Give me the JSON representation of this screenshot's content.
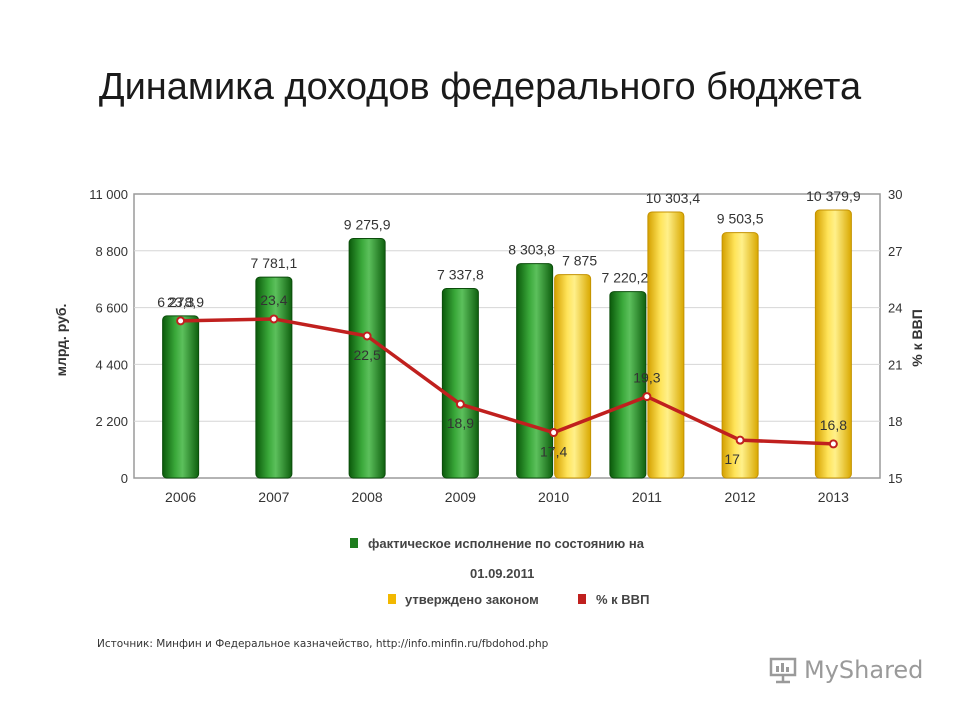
{
  "page_title": "Динамика доходов федерального бюджета",
  "source": "Источник: Минфин и Федеральное казначейство, http://info.minfin.ru/fbdohod.php",
  "logo": {
    "text": "MyShared",
    "icon": "presentation-board-icon"
  },
  "colors": {
    "actual": "#1e7d1e",
    "approved": "#f2c500",
    "gdp": "#c0201e"
  },
  "chart_data": {
    "type": "bar",
    "categories": [
      "2006",
      "2007",
      "2008",
      "2009",
      "2010",
      "2011",
      "2012",
      "2013"
    ],
    "ylabel": "млрд. руб.",
    "y2label": "% к ВВП",
    "ylim": [
      0,
      11000
    ],
    "y_ticks": [
      "0",
      "2 200",
      "4 400",
      "6 600",
      "8 800",
      "11 000"
    ],
    "y2lim": [
      15,
      30
    ],
    "y2_ticks": [
      "15",
      "18",
      "21",
      "24",
      "27",
      "30"
    ],
    "series": [
      {
        "name": "фактическое исполнение по состоянию на 01.09.2011",
        "type": "bar",
        "values": [
          6278.9,
          7781.1,
          9275.9,
          7337.8,
          8303.8,
          7220.2,
          null,
          null
        ],
        "labels": [
          "6 278,9",
          "7 781,1",
          "9 275,9",
          "7 337,8",
          "8 303,8",
          "7 220,2",
          "",
          ""
        ]
      },
      {
        "name": "утверждено законом",
        "type": "bar",
        "values": [
          null,
          null,
          null,
          null,
          7875,
          10303.4,
          9503.5,
          10379.9
        ],
        "labels": [
          "",
          "",
          "",
          "",
          "7 875",
          "10 303,4",
          "9 503,5",
          "10 379,9"
        ]
      },
      {
        "name": "% к ВВП",
        "type": "line",
        "axis": "right",
        "values": [
          23.3,
          23.4,
          22.5,
          18.9,
          17.4,
          19.3,
          17,
          16.8
        ],
        "labels": [
          "23,3",
          "23,4",
          "22,5",
          "18,9",
          "17,4",
          "19,3",
          "17",
          "16,8"
        ]
      }
    ],
    "legend": [
      {
        "label_line1": "фактическое исполнение по состоянию на",
        "label_line2": "01.09.2011"
      },
      {
        "label": "утверждено законом"
      },
      {
        "label": "% к ВВП"
      }
    ],
    "legend_position": "bottom",
    "grid": true
  }
}
